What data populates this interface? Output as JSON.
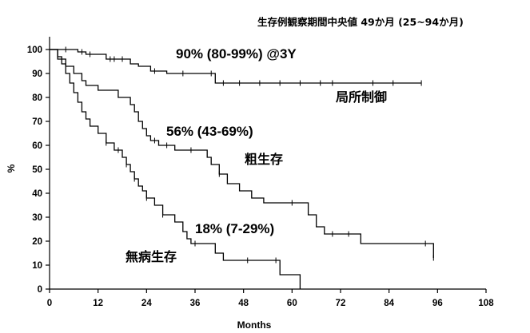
{
  "chart_data": {
    "type": "line",
    "subtitle": "生存例観察期間中央値 49か月 (25~94か月)",
    "xlabel": "Months",
    "ylabel": "%",
    "xlim": [
      0,
      108
    ],
    "ylim": [
      0,
      100
    ],
    "x_ticks": [
      0,
      12,
      24,
      36,
      48,
      60,
      72,
      84,
      96,
      108
    ],
    "y_ticks": [
      0,
      10,
      20,
      30,
      40,
      50,
      60,
      70,
      80,
      90,
      100
    ],
    "grid": false,
    "series": [
      {
        "name": "局所制御",
        "x": [
          0,
          7,
          9,
          14,
          20,
          22,
          25,
          29,
          41,
          92
        ],
        "y": [
          100,
          99,
          98,
          96,
          94,
          93,
          91,
          90,
          86,
          86
        ],
        "censored_x": [
          4,
          8,
          10,
          15,
          16,
          18,
          26,
          33,
          40,
          43,
          47,
          52,
          57,
          62,
          67,
          70,
          80,
          85,
          92
        ]
      },
      {
        "name": "粗生存",
        "x": [
          0,
          2,
          4,
          6,
          8,
          9,
          12,
          17,
          20,
          21,
          22,
          23,
          24,
          25,
          27,
          31,
          39,
          40,
          42,
          44,
          47,
          50,
          53,
          57,
          64,
          66,
          68,
          77,
          95
        ],
        "y": [
          100,
          96,
          93,
          90,
          87,
          85,
          83,
          80,
          77,
          74,
          70,
          67,
          64,
          62,
          60,
          58,
          55,
          52,
          48,
          44,
          41,
          38,
          36,
          36,
          31,
          26,
          23,
          19,
          13
        ],
        "censored_x": [
          26,
          29,
          35,
          42,
          60,
          70,
          74,
          93,
          95
        ]
      },
      {
        "name": "無病生存",
        "x": [
          0,
          2,
          3,
          4,
          5,
          6,
          7,
          8,
          9,
          10,
          12,
          14,
          16,
          18,
          19,
          20,
          21,
          22,
          23,
          24,
          26,
          28,
          31,
          33,
          34,
          35,
          41,
          43,
          57,
          62
        ],
        "y": [
          100,
          97,
          94,
          90,
          86,
          82,
          78,
          74,
          71,
          68,
          65,
          61,
          58,
          55,
          52,
          49,
          46,
          43,
          41,
          38,
          35,
          31,
          28,
          24,
          21,
          19,
          15,
          12,
          6,
          0
        ],
        "censored_x": [
          14,
          17,
          19,
          21,
          24,
          28,
          36,
          49,
          56
        ]
      }
    ],
    "annotations": [
      {
        "text": "90% (80-99%) @3Y"
      },
      {
        "text": "56% (43-69%)"
      },
      {
        "text": "18% (7-29%)"
      }
    ]
  }
}
